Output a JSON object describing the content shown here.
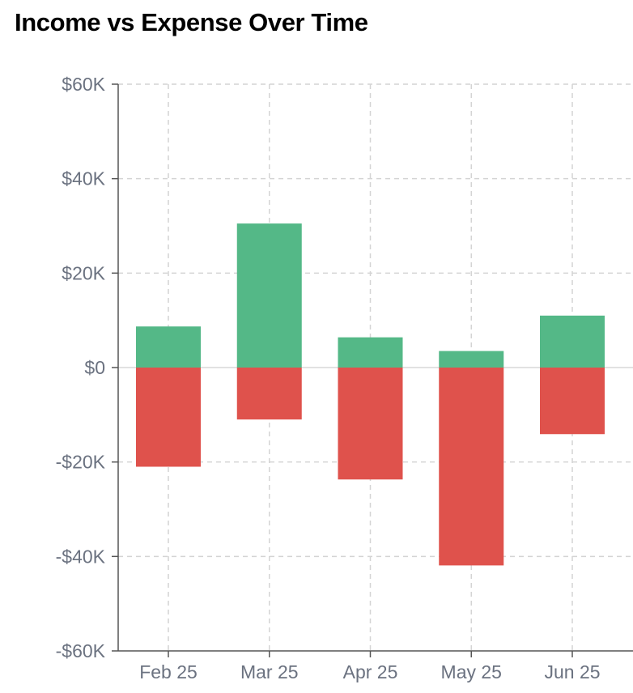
{
  "chart_data": {
    "type": "bar",
    "title": "Income vs Expense Over Time",
    "categories": [
      "Feb 25",
      "Mar 25",
      "Apr 25",
      "May 25",
      "Jun 25"
    ],
    "series": [
      {
        "values": [
          8700,
          30500,
          6400,
          3500,
          11000
        ],
        "color": "#54b887"
      },
      {
        "values": [
          -21000,
          -11000,
          -23700,
          -41900,
          -14100
        ],
        "color": "#df524c"
      }
    ],
    "ylim": [
      -60000,
      60000
    ],
    "yticks": [
      60000,
      40000,
      20000,
      0,
      -20000,
      -40000,
      -60000
    ],
    "ytick_labels": [
      "$60K",
      "$40K",
      "$20K",
      "$0",
      "-$20K",
      "-$40K",
      "-$60K"
    ],
    "stacked": true,
    "grid": true,
    "xlabel": "",
    "ylabel": ""
  }
}
